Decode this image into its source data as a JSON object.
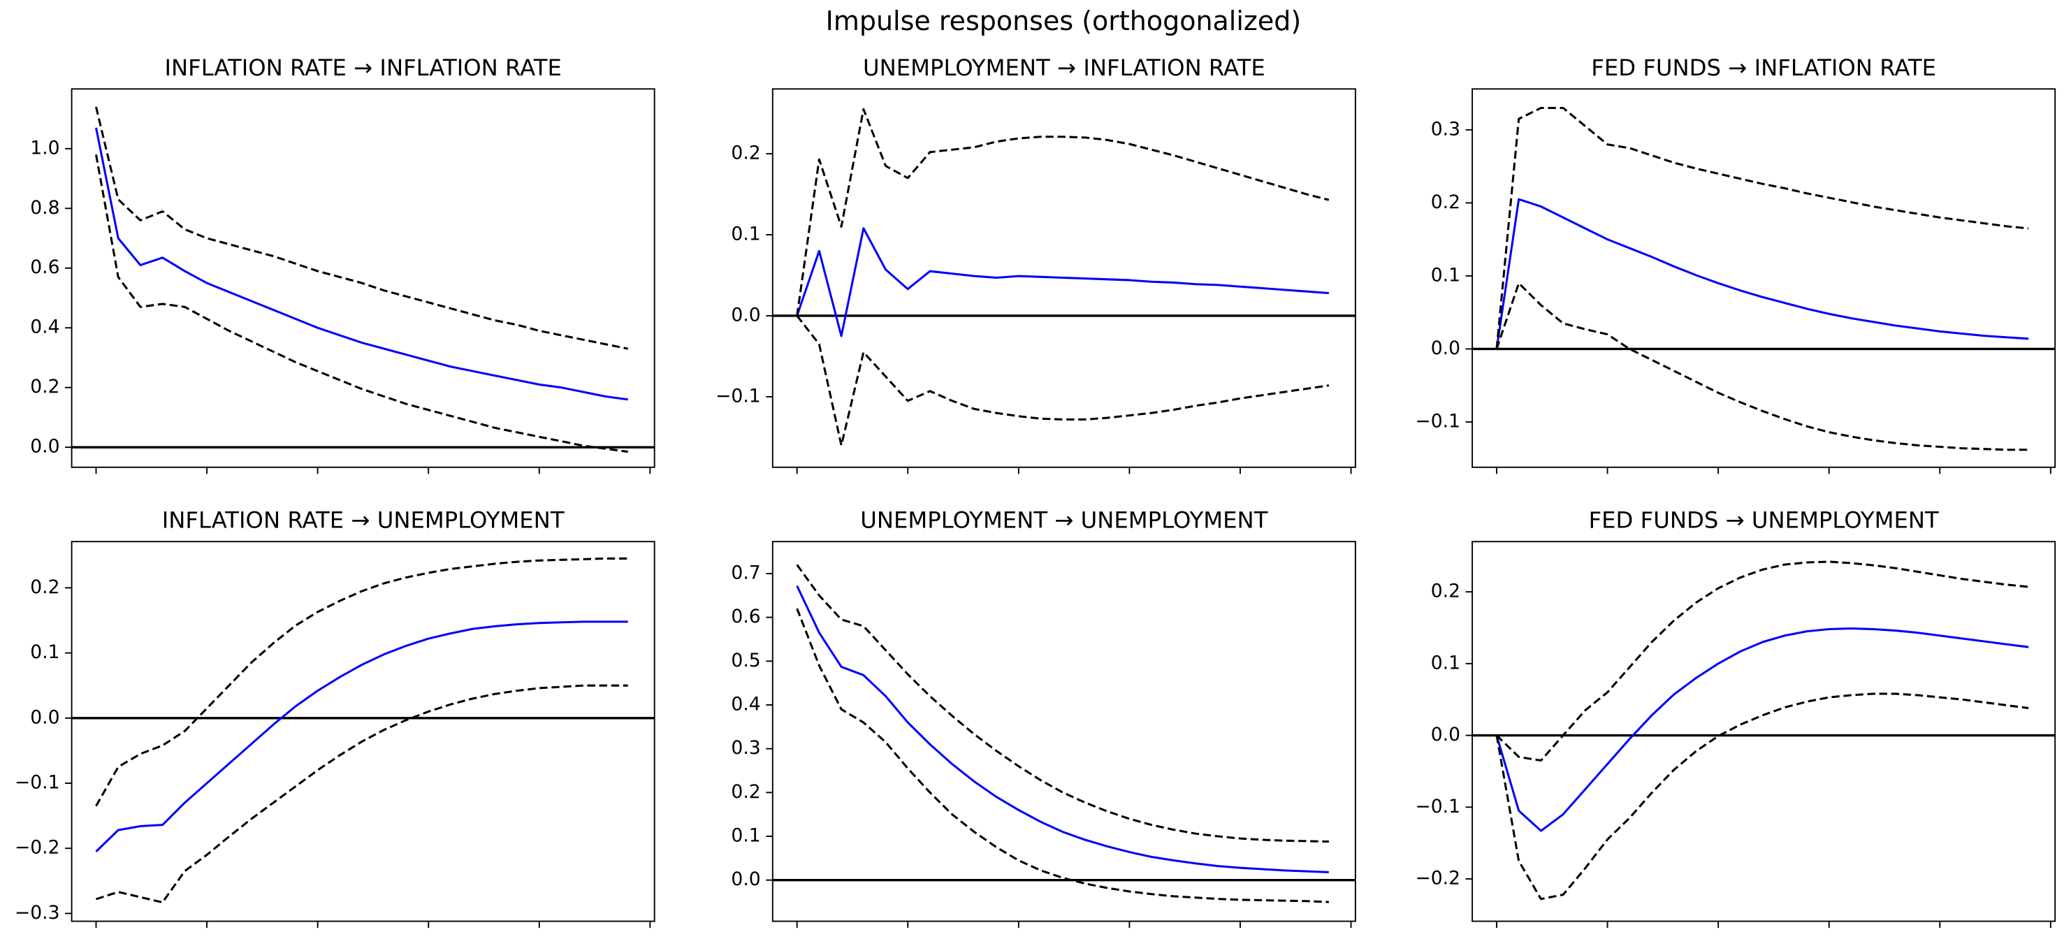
{
  "title": "Impulse responses (orthogonalized)",
  "chart_data": [
    {
      "type": "line",
      "title": "INFLATION RATE → INFLATION RATE",
      "x": [
        0,
        1,
        2,
        3,
        4,
        5,
        6,
        7,
        8,
        9,
        10,
        11,
        12,
        13,
        14,
        15,
        16,
        17,
        18,
        19,
        20,
        21,
        22,
        23,
        24
      ],
      "xlim": [
        -1.1,
        25.2
      ],
      "xticks": [
        0,
        5,
        10,
        15,
        20,
        25
      ],
      "ylim": [
        -0.067,
        1.2
      ],
      "yticks": [
        {
          "value": 0,
          "label": "0.0"
        },
        0.2,
        0.4,
        0.6,
        0.8,
        {
          "value": 1,
          "label": "1.0"
        }
      ],
      "axhline": 0,
      "series": [
        {
          "color": "#0000ff",
          "linestyle": "solid",
          "values": [
            1.07,
            0.7,
            0.61,
            0.635,
            0.59,
            0.55,
            0.52,
            0.49,
            0.46,
            0.43,
            0.4,
            0.375,
            0.35,
            0.33,
            0.31,
            0.29,
            0.27,
            0.255,
            0.24,
            0.225,
            0.21,
            0.2,
            0.185,
            0.17,
            0.16
          ]
        },
        {
          "color": "#000000",
          "linestyle": "dashed",
          "values": [
            1.14,
            0.83,
            0.76,
            0.79,
            0.73,
            0.7,
            0.68,
            0.66,
            0.64,
            0.615,
            0.59,
            0.57,
            0.55,
            0.525,
            0.505,
            0.485,
            0.465,
            0.445,
            0.425,
            0.41,
            0.39,
            0.375,
            0.36,
            0.345,
            0.33
          ]
        },
        {
          "color": "#000000",
          "linestyle": "dashed",
          "values": [
            0.98,
            0.57,
            0.47,
            0.48,
            0.47,
            0.43,
            0.39,
            0.355,
            0.32,
            0.285,
            0.255,
            0.225,
            0.195,
            0.17,
            0.145,
            0.125,
            0.105,
            0.085,
            0.065,
            0.05,
            0.035,
            0.02,
            0.005,
            -0.005,
            -0.015
          ]
        }
      ]
    },
    {
      "type": "line",
      "title": "UNEMPLOYMENT → INFLATION RATE",
      "x": [
        0,
        1,
        2,
        3,
        4,
        5,
        6,
        7,
        8,
        9,
        10,
        11,
        12,
        13,
        14,
        15,
        16,
        17,
        18,
        19,
        20,
        21,
        22,
        23,
        24
      ],
      "xlim": [
        -1.1,
        25.2
      ],
      "xticks": [
        0,
        5,
        10,
        15,
        20,
        25
      ],
      "ylim": [
        -0.187,
        0.28
      ],
      "yticks": [
        {
          "value": -0.1,
          "label": "−0.1"
        },
        {
          "value": 0,
          "label": "0.0"
        },
        0.1,
        0.2
      ],
      "axhline": 0,
      "series": [
        {
          "color": "#0000ff",
          "linestyle": "solid",
          "values": [
            0,
            0.08,
            -0.025,
            0.108,
            0.057,
            0.033,
            0.055,
            0.052,
            0.049,
            0.047,
            0.049,
            0.048,
            0.047,
            0.046,
            0.045,
            0.044,
            0.042,
            0.041,
            0.039,
            0.038,
            0.036,
            0.034,
            0.032,
            0.03,
            0.028
          ]
        },
        {
          "color": "#000000",
          "linestyle": "dashed",
          "values": [
            0,
            0.193,
            0.11,
            0.255,
            0.185,
            0.17,
            0.202,
            0.205,
            0.208,
            0.215,
            0.219,
            0.221,
            0.221,
            0.22,
            0.217,
            0.212,
            0.205,
            0.198,
            0.19,
            0.182,
            0.174,
            0.166,
            0.158,
            0.15,
            0.143
          ]
        },
        {
          "color": "#000000",
          "linestyle": "dashed",
          "values": [
            0,
            -0.035,
            -0.16,
            -0.045,
            -0.075,
            -0.105,
            -0.093,
            -0.105,
            -0.115,
            -0.12,
            -0.124,
            -0.127,
            -0.128,
            -0.128,
            -0.126,
            -0.123,
            -0.12,
            -0.116,
            -0.111,
            -0.107,
            -0.102,
            -0.098,
            -0.094,
            -0.09,
            -0.086
          ]
        }
      ]
    },
    {
      "type": "line",
      "title": "FED FUNDS → INFLATION RATE",
      "x": [
        0,
        1,
        2,
        3,
        4,
        5,
        6,
        7,
        8,
        9,
        10,
        11,
        12,
        13,
        14,
        15,
        16,
        17,
        18,
        19,
        20,
        21,
        22,
        23,
        24
      ],
      "xlim": [
        -1.1,
        25.2
      ],
      "xticks": [
        0,
        5,
        10,
        15,
        20,
        25
      ],
      "ylim": [
        -0.162,
        0.356
      ],
      "yticks": [
        {
          "value": -0.1,
          "label": "−0.1"
        },
        {
          "value": 0,
          "label": "0.0"
        },
        0.1,
        0.2,
        0.3
      ],
      "axhline": 0,
      "series": [
        {
          "color": "#0000ff",
          "linestyle": "solid",
          "values": [
            0,
            0.205,
            0.195,
            0.18,
            0.165,
            0.15,
            0.138,
            0.126,
            0.113,
            0.101,
            0.09,
            0.08,
            0.071,
            0.063,
            0.055,
            0.048,
            0.042,
            0.037,
            0.032,
            0.028,
            0.024,
            0.021,
            0.018,
            0.016,
            0.014
          ]
        },
        {
          "color": "#000000",
          "linestyle": "dashed",
          "values": [
            0,
            0.315,
            0.33,
            0.33,
            0.305,
            0.28,
            0.275,
            0.265,
            0.255,
            0.247,
            0.24,
            0.233,
            0.226,
            0.22,
            0.213,
            0.207,
            0.201,
            0.195,
            0.19,
            0.185,
            0.18,
            0.176,
            0.172,
            0.168,
            0.165
          ]
        },
        {
          "color": "#000000",
          "linestyle": "dashed",
          "values": [
            0,
            0.09,
            0.06,
            0.035,
            0.027,
            0.02,
            0.0,
            -0.015,
            -0.03,
            -0.045,
            -0.06,
            -0.073,
            -0.085,
            -0.096,
            -0.106,
            -0.114,
            -0.12,
            -0.125,
            -0.129,
            -0.132,
            -0.134,
            -0.136,
            -0.137,
            -0.138,
            -0.138
          ]
        }
      ]
    },
    {
      "type": "line",
      "title": "INFLATION RATE → UNEMPLOYMENT",
      "x": [
        0,
        1,
        2,
        3,
        4,
        5,
        6,
        7,
        8,
        9,
        10,
        11,
        12,
        13,
        14,
        15,
        16,
        17,
        18,
        19,
        20,
        21,
        22,
        23,
        24
      ],
      "xlim": [
        -1.1,
        25.2
      ],
      "xticks": [
        0,
        5,
        10,
        15,
        20,
        25
      ],
      "ylim": [
        -0.312,
        0.271
      ],
      "yticks": [
        {
          "value": -0.3,
          "label": "−0.3"
        },
        {
          "value": -0.2,
          "label": "−0.2"
        },
        {
          "value": -0.1,
          "label": "−0.1"
        },
        {
          "value": 0,
          "label": "0.0"
        },
        0.1,
        0.2
      ],
      "axhline": 0,
      "series": [
        {
          "color": "#0000ff",
          "linestyle": "solid",
          "values": [
            -0.205,
            -0.172,
            -0.166,
            -0.164,
            -0.13,
            -0.1,
            -0.07,
            -0.04,
            -0.01,
            0.018,
            0.042,
            0.063,
            0.082,
            0.098,
            0.111,
            0.122,
            0.13,
            0.137,
            0.141,
            0.144,
            0.146,
            0.147,
            0.148,
            0.148,
            0.148
          ]
        },
        {
          "color": "#000000",
          "linestyle": "dashed",
          "values": [
            -0.135,
            -0.075,
            -0.055,
            -0.042,
            -0.02,
            0.015,
            0.05,
            0.085,
            0.115,
            0.142,
            0.163,
            0.18,
            0.195,
            0.207,
            0.216,
            0.223,
            0.229,
            0.233,
            0.237,
            0.24,
            0.242,
            0.243,
            0.244,
            0.245,
            0.245
          ]
        },
        {
          "color": "#000000",
          "linestyle": "dashed",
          "values": [
            -0.278,
            -0.267,
            -0.275,
            -0.283,
            -0.235,
            -0.21,
            -0.182,
            -0.155,
            -0.13,
            -0.105,
            -0.08,
            -0.057,
            -0.036,
            -0.018,
            -0.003,
            0.01,
            0.021,
            0.03,
            0.037,
            0.042,
            0.046,
            0.048,
            0.05,
            0.05,
            0.05
          ]
        }
      ]
    },
    {
      "type": "line",
      "title": "UNEMPLOYMENT → UNEMPLOYMENT",
      "x": [
        0,
        1,
        2,
        3,
        4,
        5,
        6,
        7,
        8,
        9,
        10,
        11,
        12,
        13,
        14,
        15,
        16,
        17,
        18,
        19,
        20,
        21,
        22,
        23,
        24
      ],
      "xlim": [
        -1.1,
        25.2
      ],
      "xticks": [
        0,
        5,
        10,
        15,
        20,
        25
      ],
      "ylim": [
        -0.094,
        0.773
      ],
      "yticks": [
        {
          "value": 0,
          "label": "0.0"
        },
        0.1,
        0.2,
        0.3,
        0.4,
        0.5,
        0.6,
        0.7
      ],
      "axhline": 0,
      "series": [
        {
          "color": "#0000ff",
          "linestyle": "solid",
          "values": [
            0.672,
            0.565,
            0.487,
            0.468,
            0.42,
            0.36,
            0.31,
            0.265,
            0.225,
            0.19,
            0.16,
            0.133,
            0.11,
            0.092,
            0.077,
            0.064,
            0.053,
            0.045,
            0.038,
            0.032,
            0.028,
            0.025,
            0.022,
            0.02,
            0.018
          ]
        },
        {
          "color": "#000000",
          "linestyle": "dashed",
          "values": [
            0.72,
            0.65,
            0.595,
            0.58,
            0.525,
            0.47,
            0.42,
            0.375,
            0.333,
            0.295,
            0.26,
            0.228,
            0.2,
            0.177,
            0.157,
            0.14,
            0.126,
            0.115,
            0.106,
            0.1,
            0.095,
            0.092,
            0.09,
            0.089,
            0.088
          ]
        },
        {
          "color": "#000000",
          "linestyle": "dashed",
          "values": [
            0.62,
            0.49,
            0.39,
            0.36,
            0.315,
            0.255,
            0.2,
            0.15,
            0.11,
            0.075,
            0.045,
            0.022,
            0.005,
            -0.008,
            -0.018,
            -0.026,
            -0.032,
            -0.037,
            -0.04,
            -0.043,
            -0.045,
            -0.046,
            -0.047,
            -0.048,
            -0.05
          ]
        }
      ]
    },
    {
      "type": "line",
      "title": "FED FUNDS → UNEMPLOYMENT",
      "x": [
        0,
        1,
        2,
        3,
        4,
        5,
        6,
        7,
        8,
        9,
        10,
        11,
        12,
        13,
        14,
        15,
        16,
        17,
        18,
        19,
        20,
        21,
        22,
        23,
        24
      ],
      "xlim": [
        -1.1,
        25.2
      ],
      "xticks": [
        0,
        5,
        10,
        15,
        20,
        25
      ],
      "ylim": [
        -0.259,
        0.27
      ],
      "yticks": [
        {
          "value": -0.2,
          "label": "−0.2"
        },
        {
          "value": -0.1,
          "label": "−0.1"
        },
        {
          "value": 0,
          "label": "0.0"
        },
        0.1,
        0.2
      ],
      "axhline": 0,
      "series": [
        {
          "color": "#0000ff",
          "linestyle": "solid",
          "values": [
            0,
            -0.105,
            -0.133,
            -0.11,
            -0.075,
            -0.04,
            -0.005,
            0.028,
            0.057,
            0.08,
            0.1,
            0.117,
            0.13,
            0.139,
            0.145,
            0.148,
            0.149,
            0.148,
            0.146,
            0.143,
            0.139,
            0.135,
            0.131,
            0.127,
            0.123
          ]
        },
        {
          "color": "#000000",
          "linestyle": "dashed",
          "values": [
            0,
            -0.03,
            -0.035,
            0.0,
            0.035,
            0.06,
            0.095,
            0.13,
            0.16,
            0.185,
            0.205,
            0.22,
            0.231,
            0.238,
            0.241,
            0.242,
            0.24,
            0.237,
            0.233,
            0.228,
            0.223,
            0.218,
            0.214,
            0.21,
            0.207
          ]
        },
        {
          "color": "#000000",
          "linestyle": "dashed",
          "values": [
            0,
            -0.175,
            -0.228,
            -0.222,
            -0.185,
            -0.145,
            -0.115,
            -0.08,
            -0.048,
            -0.022,
            -0.001,
            0.015,
            0.028,
            0.039,
            0.047,
            0.053,
            0.056,
            0.058,
            0.058,
            0.056,
            0.053,
            0.05,
            0.046,
            0.042,
            0.038
          ]
        }
      ]
    }
  ]
}
